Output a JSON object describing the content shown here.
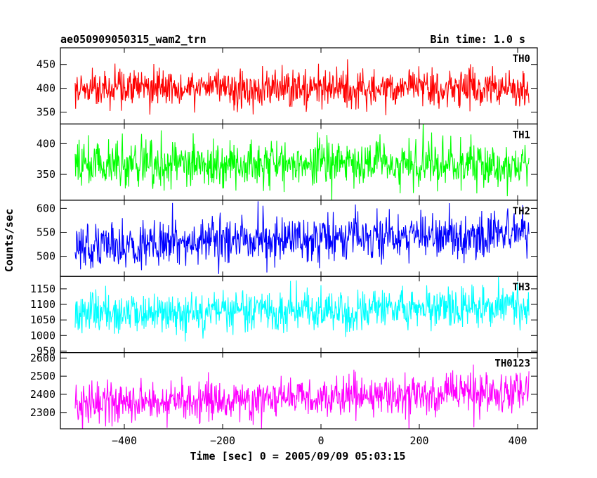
{
  "chart_data": {
    "type": "line",
    "title": "ae050909050315_wam2_trn",
    "bin_time_label": "Bin time: 1.0 s",
    "xlabel": "Time [sec] 0 = 2005/09/09 05:03:15",
    "ylabel": "Counts/sec",
    "xlim": [
      -530,
      440
    ],
    "x_ticks": [
      -400,
      -200,
      0,
      200,
      400
    ],
    "x_tick_labels": [
      "−400",
      "−200",
      "0",
      "200",
      "400"
    ],
    "x_range": [
      -500,
      423
    ],
    "bin_time": 1.0,
    "panels": [
      {
        "name": "TH0",
        "color": "#ff0000",
        "ylim": [
          325,
          485
        ],
        "y_ticks": [
          350,
          400,
          450
        ],
        "y_tick_labels": [
          "350",
          "400",
          "450"
        ],
        "mean_start": 400,
        "mean_end": 400,
        "noise_sd": 20
      },
      {
        "name": "TH1",
        "color": "#00ff00",
        "ylim": [
          308,
          432
        ],
        "y_ticks": [
          350,
          400
        ],
        "y_tick_labels": [
          "350",
          "400"
        ],
        "mean_start": 367,
        "mean_end": 367,
        "noise_sd": 19
      },
      {
        "name": "TH2",
        "color": "#0000ff",
        "ylim": [
          458,
          617
        ],
        "y_ticks": [
          500,
          550,
          600
        ],
        "y_tick_labels": [
          "500",
          "550",
          "600"
        ],
        "mean_start": 520,
        "mean_end": 548,
        "noise_sd": 23
      },
      {
        "name": "TH3",
        "color": "#00ffff",
        "ylim": [
          945,
          1190
        ],
        "y_ticks": [
          950,
          1000,
          1050,
          1100,
          1150
        ],
        "y_tick_labels": [
          "950",
          "1000",
          "1050",
          "1100",
          "1150"
        ],
        "mean_start": 1065,
        "mean_end": 1090,
        "noise_sd": 33
      },
      {
        "name": "TH0123",
        "color": "#ff00ff",
        "ylim": [
          2210,
          2630
        ],
        "y_ticks": [
          2300,
          2400,
          2500,
          2600
        ],
        "y_tick_labels": [
          "2300",
          "2400",
          "2500",
          "2600"
        ],
        "mean_start": 2340,
        "mean_end": 2420,
        "noise_sd": 55
      }
    ],
    "grid": false,
    "legend": "none"
  }
}
